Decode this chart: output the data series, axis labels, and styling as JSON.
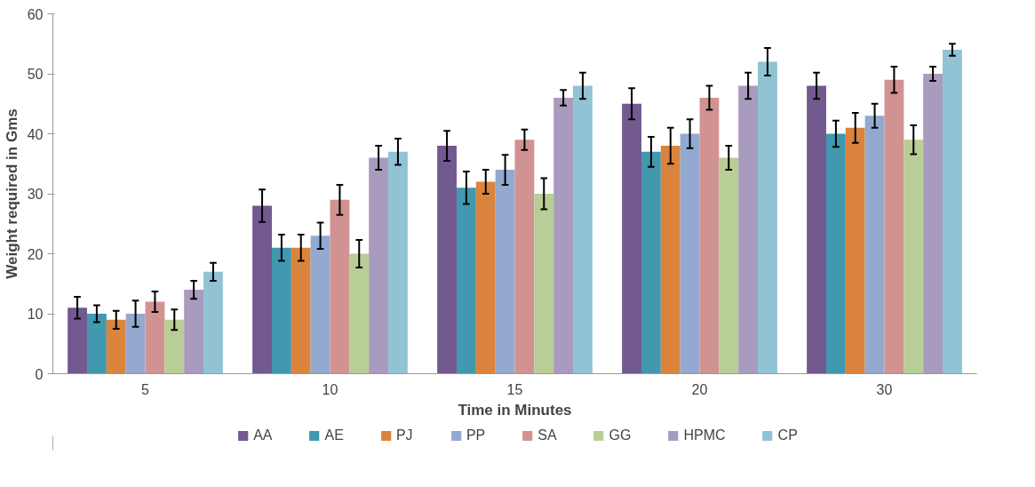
{
  "chart_data": {
    "type": "bar",
    "xlabel": "Time in Minutes",
    "ylabel": "Weight required in Gms",
    "categories": [
      "5",
      "10",
      "15",
      "20",
      "30"
    ],
    "ylim": [
      0,
      60
    ],
    "yticks": [
      0,
      10,
      20,
      30,
      40,
      50,
      60
    ],
    "grid": false,
    "legend": "bottom",
    "series": [
      {
        "name": "AA",
        "color": "#725990",
        "values": [
          11,
          28,
          38,
          45,
          48
        ],
        "errors": [
          1.8,
          2.7,
          2.5,
          2.6,
          2.2
        ]
      },
      {
        "name": "AE",
        "color": "#4198af",
        "values": [
          10,
          21,
          31,
          37,
          40
        ],
        "errors": [
          1.4,
          2.2,
          2.7,
          2.5,
          2.2
        ]
      },
      {
        "name": "PJ",
        "color": "#db843d",
        "values": [
          9,
          21,
          32,
          38,
          41
        ],
        "errors": [
          1.5,
          2.2,
          2,
          3,
          2.5
        ]
      },
      {
        "name": "PP",
        "color": "#93a9cf",
        "values": [
          10,
          23,
          34,
          40,
          43
        ],
        "errors": [
          2.2,
          2.2,
          2.5,
          2.4,
          2
        ]
      },
      {
        "name": "SA",
        "color": "#d19392",
        "values": [
          12,
          29,
          39,
          46,
          49
        ],
        "errors": [
          1.7,
          2.5,
          1.7,
          2,
          2.2
        ]
      },
      {
        "name": "GG",
        "color": "#b9cd96",
        "values": [
          9,
          20,
          30,
          36,
          39
        ],
        "errors": [
          1.7,
          2.3,
          2.6,
          2,
          2.4
        ]
      },
      {
        "name": "HPMC",
        "color": "#a99bbd",
        "values": [
          14,
          36,
          46,
          48,
          50
        ],
        "errors": [
          1.5,
          2,
          1.3,
          2.2,
          1.2
        ]
      },
      {
        "name": "CP",
        "color": "#91c3d5",
        "values": [
          17,
          37,
          48,
          52,
          54
        ],
        "errors": [
          1.5,
          2.2,
          2.2,
          2.3,
          1
        ]
      }
    ]
  }
}
